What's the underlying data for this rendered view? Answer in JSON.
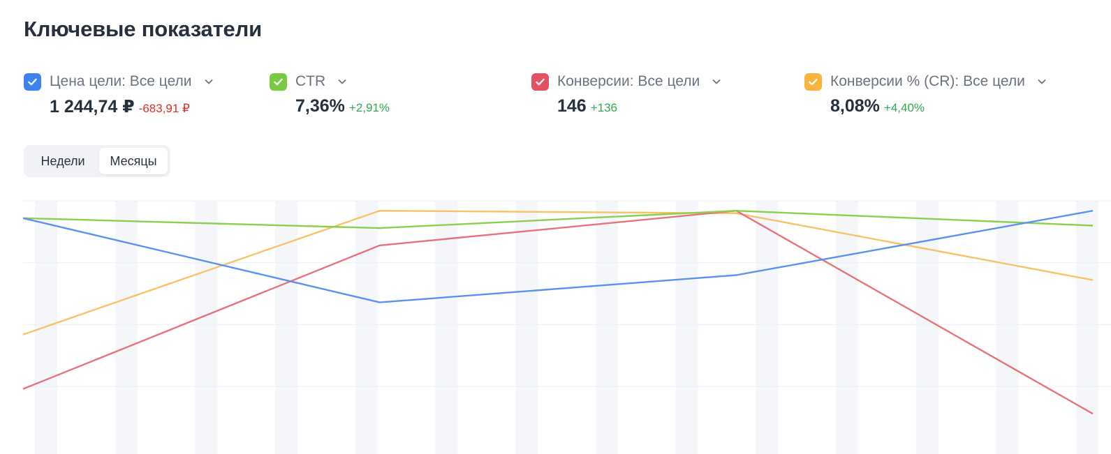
{
  "title": "Ключевые показатели",
  "metrics": [
    {
      "label": "Цена цели: Все цели",
      "value": "1 244,74 ₽",
      "delta": "-683,91 ₽",
      "delta_color": "#e0302b",
      "color": "#3d82f0"
    },
    {
      "label": "CTR",
      "value": "7,36%",
      "delta": "+2,91%",
      "delta_color": "#33a84c",
      "color": "#7ac943"
    },
    {
      "label": "Конверсии: Все цели",
      "value": "146",
      "delta": "+136",
      "delta_color": "#33a84c",
      "color": "#e5525f"
    },
    {
      "label": "Конверсии % (CR): Все цели",
      "value": "8,08%",
      "delta": "+4,40%",
      "delta_color": "#33a84c",
      "color": "#f8b43c"
    }
  ],
  "period_toggle": {
    "options": [
      "Недели",
      "Месяцы"
    ],
    "selected": "Месяцы"
  },
  "icons": {
    "checkbox": "check-icon",
    "expand": "chevron-down-icon"
  },
  "chart_data": {
    "type": "line",
    "x": [
      0,
      1,
      2,
      3
    ],
    "xlim": [
      0,
      3
    ],
    "ylim": [
      0,
      100
    ],
    "grid": true,
    "legend": "top",
    "series": [
      {
        "name": "Цена цели: Все цели",
        "color": "#5b92f2",
        "values": [
          93,
          59,
          70,
          96
        ]
      },
      {
        "name": "CTR",
        "color": "#8bcf4f",
        "values": [
          93,
          89,
          96,
          90
        ]
      },
      {
        "name": "Конверсии: Все цели",
        "color": "#e6737c",
        "values": [
          24,
          82,
          96,
          14
        ]
      },
      {
        "name": "Конверсии % (CR): Все цели",
        "color": "#f9c266",
        "values": [
          46,
          96,
          95,
          68
        ]
      }
    ]
  }
}
